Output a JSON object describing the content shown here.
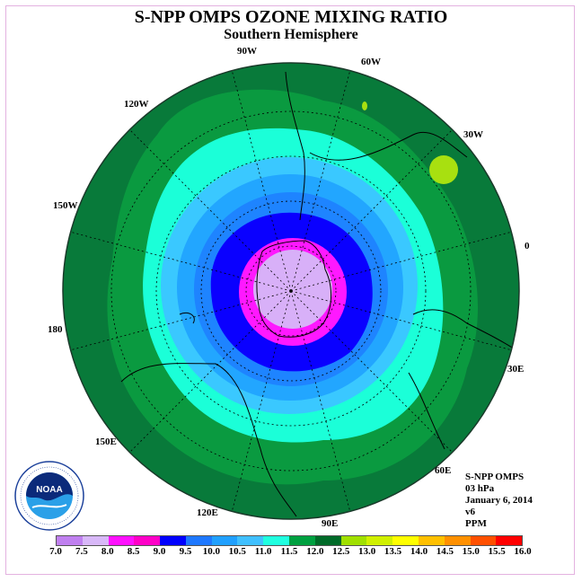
{
  "title": "S-NPP OMPS OZONE MIXING RATIO",
  "subtitle": "Southern Hemisphere",
  "longitude_labels": [
    "90W",
    "60W",
    "30W",
    "0",
    "30E",
    "60E",
    "90E",
    "120E",
    "150E",
    "180",
    "150W",
    "120W"
  ],
  "info": {
    "instrument": "S-NPP OMPS",
    "pressure": "03 hPa",
    "date": "January 6, 2014",
    "version": "v6",
    "units": "PPM"
  },
  "colorbar": {
    "labels": [
      "7.0",
      "7.5",
      "8.0",
      "8.5",
      "9.0",
      "9.5",
      "10.0",
      "10.5",
      "11.0",
      "11.5",
      "12.0",
      "12.5",
      "13.0",
      "13.5",
      "14.0",
      "14.5",
      "15.0",
      "15.5",
      "16.0"
    ],
    "colors": [
      "#c080f0",
      "#d8b8f8",
      "#ff10ff",
      "#ff00c8",
      "#0000ff",
      "#1e78ff",
      "#20a0ff",
      "#40c0ff",
      "#20ffe0",
      "#00a040",
      "#006a28",
      "#a0e000",
      "#d0f000",
      "#ffff00",
      "#ffc000",
      "#ff9000",
      "#ff5000",
      "#ff0000",
      "#8b5a3c"
    ]
  },
  "map_colors": {
    "outer": "#087a3a",
    "ring_11_5": "#0a9a40",
    "ring_11_0": "#1bffd8",
    "ring_10_5": "#3ac8ff",
    "ring_10_0": "#22a6ff",
    "ring_9_5": "#1e84ff",
    "ring_9_0": "#0a00ff",
    "ring_8_5": "#ff18ff",
    "center": "#d8b0f8",
    "blob": "#a8e010"
  },
  "logo_text": "NOAA"
}
